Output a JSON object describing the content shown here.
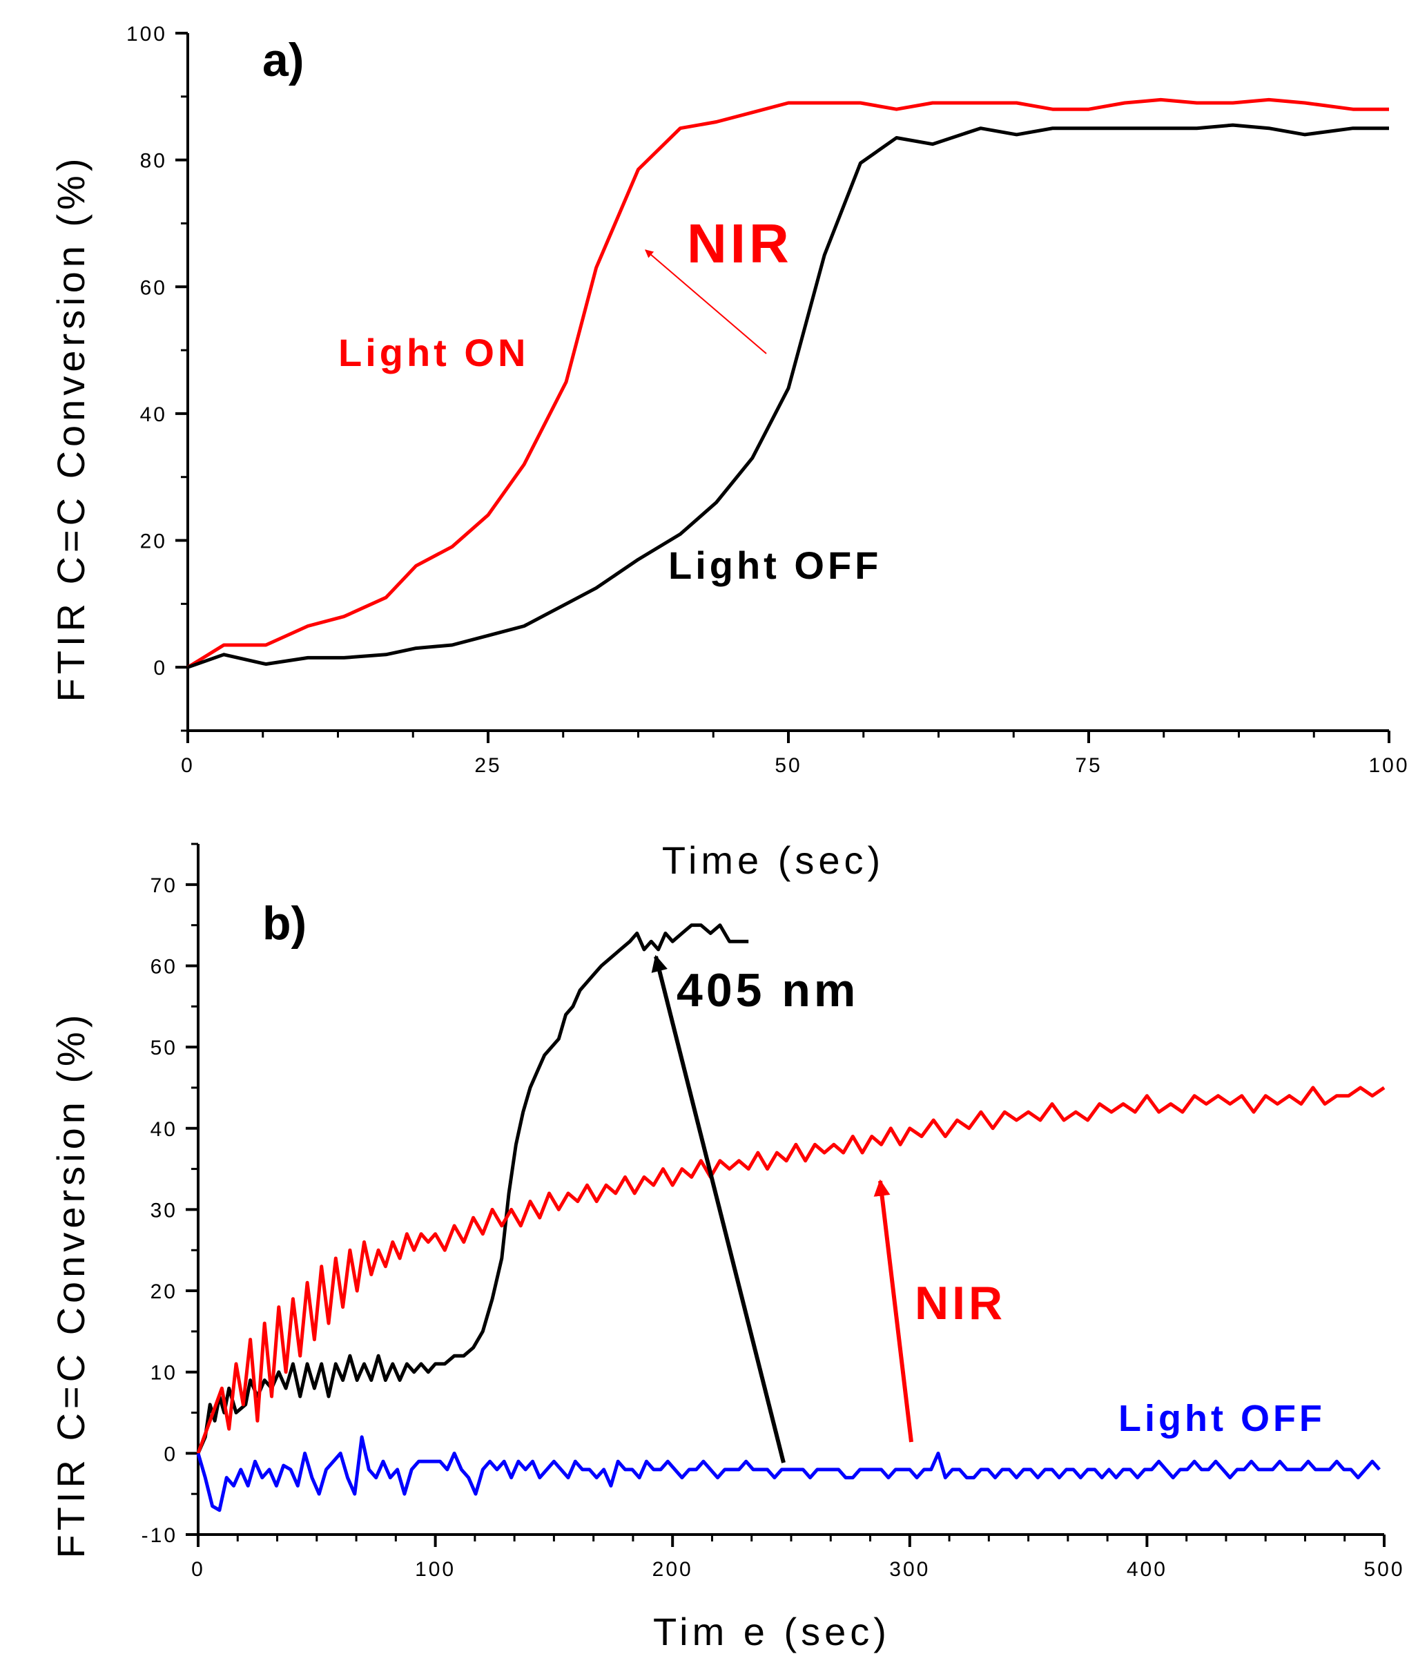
{
  "chart_data": [
    {
      "type": "line",
      "panel_label": "a)",
      "xlabel": "Time (sec)",
      "ylabel": "FTIR C=C Conversion (%)",
      "xlim": [
        0,
        100
      ],
      "ylim": [
        -10,
        100
      ],
      "xticks": [
        0,
        25,
        50,
        75,
        100
      ],
      "yticks": [
        0,
        20,
        40,
        60,
        80,
        100
      ],
      "x_tick_labels": [
        "0",
        "25",
        "50",
        "75",
        "100"
      ],
      "y_tick_labels": [
        "0",
        "20",
        "40",
        "60",
        "80",
        "100"
      ],
      "series": [
        {
          "name": "Light ON",
          "color": "#ff0000",
          "x": [
            0,
            3,
            6.5,
            10,
            13,
            16.5,
            19,
            22,
            25,
            28,
            31.5,
            34,
            37.5,
            41,
            44,
            47,
            50,
            53,
            56,
            59,
            62,
            66,
            69,
            72,
            75,
            78,
            81,
            84,
            87,
            90,
            93,
            97,
            100
          ],
          "y": [
            0,
            3.5,
            3.5,
            6.5,
            8,
            11,
            16,
            19,
            24,
            32,
            45,
            63,
            78.5,
            85,
            86,
            87.5,
            89,
            89,
            89,
            88,
            89,
            89,
            89,
            88,
            88,
            89,
            89.5,
            89,
            89,
            89.5,
            89,
            88,
            88
          ]
        },
        {
          "name": "Light OFF",
          "color": "#000000",
          "x": [
            0,
            3,
            6.5,
            10,
            13,
            16.5,
            19,
            22,
            25,
            28,
            31.5,
            34,
            37.5,
            41,
            44,
            47,
            50,
            53,
            56,
            59,
            62,
            66,
            69,
            72,
            75,
            78,
            81,
            84,
            87,
            90,
            93,
            97,
            100
          ],
          "y": [
            0,
            2,
            0.5,
            1.5,
            1.5,
            2,
            3,
            3.5,
            5,
            6.5,
            10,
            12.5,
            17,
            21,
            26,
            33,
            44,
            65,
            79.5,
            83.5,
            82.5,
            85,
            84,
            85,
            85,
            85,
            85,
            85,
            85.5,
            85,
            84,
            85,
            85
          ]
        }
      ],
      "annotations": [
        {
          "text": "Light ON",
          "color": "#ff0000"
        },
        {
          "text": "NIR",
          "color": "#ff0000"
        },
        {
          "text": "Light OFF",
          "color": "#000000"
        }
      ]
    },
    {
      "type": "line",
      "panel_label": "b)",
      "xlabel": "Tim e (sec)",
      "ylabel": "FTIR C=C Conversion (%)",
      "xlim": [
        0,
        500
      ],
      "ylim": [
        -10,
        75
      ],
      "xticks": [
        0,
        100,
        200,
        300,
        400,
        500
      ],
      "yticks": [
        -10,
        0,
        10,
        20,
        30,
        40,
        50,
        60,
        70
      ],
      "x_tick_labels": [
        "0",
        "100",
        "200",
        "300",
        "400",
        "500"
      ],
      "y_tick_labels": [
        "-10",
        "0",
        "10",
        "20",
        "30",
        "40",
        "50",
        "60",
        "70"
      ],
      "series": [
        {
          "name": "405 nm",
          "color": "#000000",
          "x": [
            0,
            3,
            5,
            7,
            9,
            11,
            13,
            16,
            20,
            22,
            25,
            28,
            31,
            34,
            37,
            40,
            43,
            46,
            49,
            52,
            55,
            58,
            61,
            64,
            67,
            70,
            73,
            76,
            79,
            82,
            85,
            88,
            91,
            94,
            97,
            100,
            104,
            108,
            112,
            116,
            120,
            124,
            128,
            131,
            134,
            137,
            140,
            143,
            146,
            149,
            152,
            155,
            158,
            161,
            164,
            167,
            170,
            174,
            178,
            182,
            185,
            188,
            191,
            194,
            197,
            200,
            204,
            208,
            212,
            216,
            220,
            224,
            228,
            232
          ],
          "y": [
            0,
            2,
            6,
            4,
            7,
            5,
            8,
            5,
            6,
            9,
            7,
            9,
            8,
            10,
            8,
            11,
            7,
            11,
            8,
            11,
            7,
            11,
            9,
            12,
            9,
            11,
            9,
            12,
            9,
            11,
            9,
            11,
            10,
            11,
            10,
            11,
            11,
            12,
            12,
            13,
            15,
            19,
            24,
            32,
            38,
            42,
            45,
            47,
            49,
            50,
            51,
            54,
            55,
            57,
            58,
            59,
            60,
            61,
            62,
            63,
            64,
            62,
            63,
            62,
            64,
            63,
            64,
            65,
            65,
            64,
            65,
            63,
            63,
            63
          ]
        },
        {
          "name": "NIR",
          "color": "#ff0000",
          "x": [
            0,
            5,
            10,
            13,
            16,
            19,
            22,
            25,
            28,
            31,
            34,
            37,
            40,
            43,
            46,
            49,
            52,
            55,
            58,
            61,
            64,
            67,
            70,
            73,
            76,
            79,
            82,
            85,
            88,
            91,
            94,
            97,
            100,
            104,
            108,
            112,
            116,
            120,
            124,
            128,
            132,
            136,
            140,
            144,
            148,
            152,
            156,
            160,
            164,
            168,
            172,
            176,
            180,
            184,
            188,
            192,
            196,
            200,
            204,
            208,
            212,
            216,
            220,
            224,
            228,
            232,
            236,
            240,
            244,
            248,
            252,
            256,
            260,
            264,
            268,
            272,
            276,
            280,
            284,
            288,
            292,
            296,
            300,
            305,
            310,
            315,
            320,
            325,
            330,
            335,
            340,
            345,
            350,
            355,
            360,
            365,
            370,
            375,
            380,
            385,
            390,
            395,
            400,
            405,
            410,
            415,
            420,
            425,
            430,
            435,
            440,
            445,
            450,
            455,
            460,
            465,
            470,
            475,
            480,
            485,
            490,
            495,
            500
          ],
          "y": [
            0,
            4,
            8,
            3,
            11,
            6,
            14,
            4,
            16,
            7,
            18,
            10,
            19,
            12,
            21,
            14,
            23,
            16,
            24,
            18,
            25,
            20,
            26,
            22,
            25,
            23,
            26,
            24,
            27,
            25,
            27,
            26,
            27,
            25,
            28,
            26,
            29,
            27,
            30,
            28,
            30,
            28,
            31,
            29,
            32,
            30,
            32,
            31,
            33,
            31,
            33,
            32,
            34,
            32,
            34,
            33,
            35,
            33,
            35,
            34,
            36,
            34,
            36,
            35,
            36,
            35,
            37,
            35,
            37,
            36,
            38,
            36,
            38,
            37,
            38,
            37,
            39,
            37,
            39,
            38,
            40,
            38,
            40,
            39,
            41,
            39,
            41,
            40,
            42,
            40,
            42,
            41,
            42,
            41,
            43,
            41,
            42,
            41,
            43,
            42,
            43,
            42,
            44,
            42,
            43,
            42,
            44,
            43,
            44,
            43,
            44,
            42,
            44,
            43,
            44,
            43,
            45,
            43,
            44,
            44,
            45,
            44,
            45
          ]
        },
        {
          "name": "Light OFF",
          "color": "#0000ff",
          "x": [
            0,
            3,
            6,
            9,
            12,
            15,
            18,
            21,
            24,
            27,
            30,
            33,
            36,
            39,
            42,
            45,
            48,
            51,
            54,
            57,
            60,
            63,
            66,
            69,
            72,
            75,
            78,
            81,
            84,
            87,
            90,
            93,
            96,
            99,
            102,
            105,
            108,
            111,
            114,
            117,
            120,
            123,
            126,
            129,
            132,
            135,
            138,
            141,
            144,
            147,
            150,
            153,
            156,
            159,
            162,
            165,
            168,
            171,
            174,
            177,
            180,
            183,
            186,
            189,
            192,
            195,
            198,
            201,
            204,
            207,
            210,
            213,
            216,
            219,
            222,
            225,
            228,
            231,
            234,
            237,
            240,
            243,
            246,
            249,
            252,
            255,
            258,
            261,
            264,
            267,
            270,
            273,
            276,
            279,
            282,
            285,
            288,
            291,
            294,
            297,
            300,
            303,
            306,
            309,
            312,
            315,
            318,
            321,
            324,
            327,
            330,
            333,
            336,
            339,
            342,
            345,
            348,
            351,
            354,
            357,
            360,
            363,
            366,
            369,
            372,
            375,
            378,
            381,
            384,
            387,
            390,
            393,
            396,
            399,
            402,
            405,
            408,
            411,
            414,
            417,
            420,
            423,
            426,
            429,
            432,
            435,
            438,
            441,
            444,
            447,
            450,
            453,
            456,
            459,
            462,
            465,
            468,
            471,
            474,
            477,
            480,
            483,
            486,
            489,
            492,
            495,
            498
          ],
          "y": [
            0,
            -3,
            -6.5,
            -7,
            -3,
            -4,
            -2,
            -4,
            -1,
            -3,
            -2,
            -4,
            -1.5,
            -2,
            -4,
            0,
            -3,
            -5,
            -2,
            -1,
            0,
            -3,
            -5,
            2,
            -2,
            -3,
            -1,
            -3,
            -2,
            -5,
            -2,
            -1,
            -1,
            -1,
            -1,
            -2,
            0,
            -2,
            -3,
            -5,
            -2,
            -1,
            -2,
            -1,
            -3,
            -1,
            -2,
            -1,
            -3,
            -2,
            -1,
            -2,
            -3,
            -1,
            -2,
            -2,
            -3,
            -2,
            -4,
            -1,
            -2,
            -2,
            -3,
            -1,
            -2,
            -2,
            -1,
            -2,
            -3,
            -2,
            -2,
            -1,
            -2,
            -3,
            -2,
            -2,
            -2,
            -1,
            -2,
            -2,
            -2,
            -3,
            -2,
            -2,
            -2,
            -2,
            -3,
            -2,
            -2,
            -2,
            -2,
            -3,
            -3,
            -2,
            -2,
            -2,
            -2,
            -3,
            -2,
            -2,
            -2,
            -3,
            -2,
            -2,
            0,
            -3,
            -2,
            -2,
            -3,
            -3,
            -2,
            -2,
            -3,
            -2,
            -2,
            -3,
            -2,
            -2,
            -3,
            -2,
            -2,
            -3,
            -2,
            -2,
            -3,
            -2,
            -2,
            -3,
            -2,
            -3,
            -2,
            -2,
            -3,
            -2,
            -2,
            -1,
            -2,
            -3,
            -2,
            -2,
            -1,
            -2,
            -2,
            -1,
            -2,
            -3,
            -2,
            -2,
            -1,
            -2,
            -2,
            -2,
            -1,
            -2,
            -2,
            -2,
            -1,
            -2,
            -2,
            -2,
            -1,
            -2,
            -2,
            -3,
            -2,
            -1,
            -2
          ]
        }
      ],
      "annotations": [
        {
          "text": "405 nm",
          "color": "#000000"
        },
        {
          "text": "NIR",
          "color": "#ff0000"
        },
        {
          "text": "Light OFF",
          "color": "#0000ff"
        }
      ]
    }
  ]
}
